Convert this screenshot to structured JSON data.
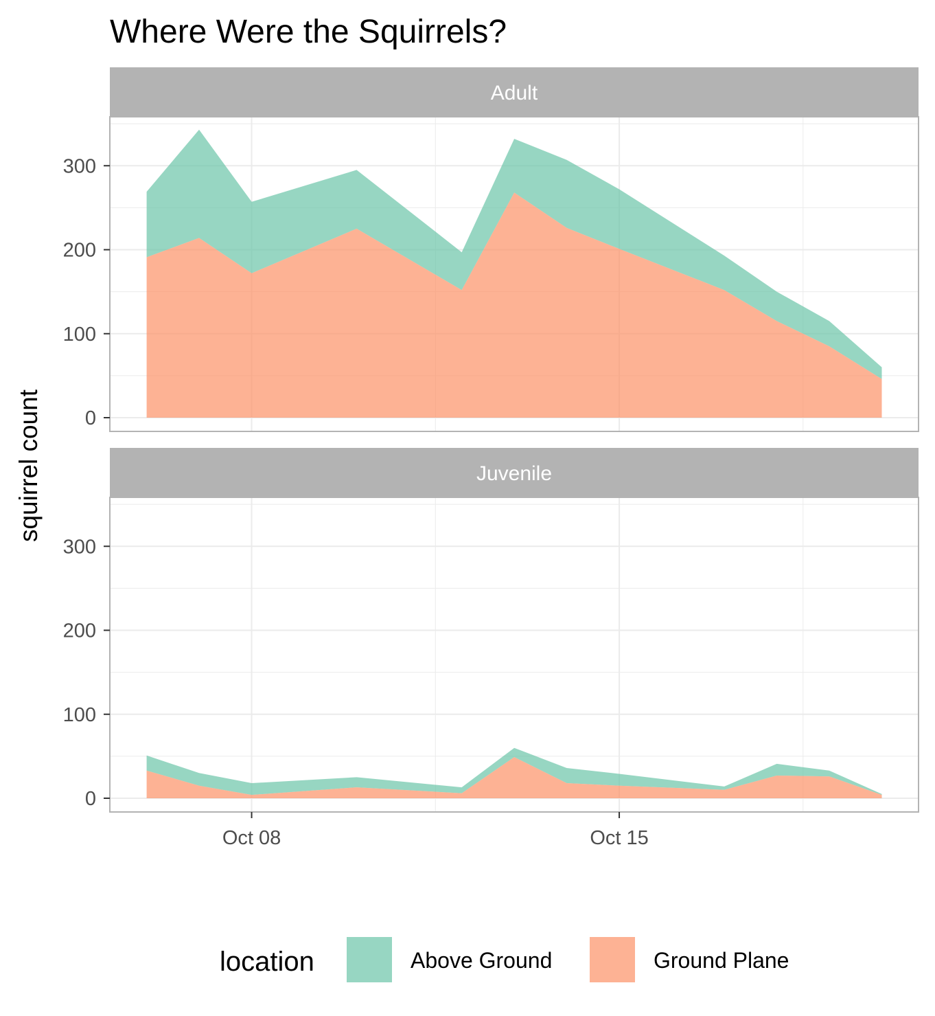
{
  "chart_data": {
    "type": "area",
    "stacked": true,
    "title": "Where Were the Squirrels?",
    "ylabel": "squirrel count",
    "xlabel": "",
    "x_ticks": [
      "Oct 08",
      "Oct 15"
    ],
    "y_ticks": [
      0,
      100,
      200,
      300
    ],
    "ylim": [
      0,
      360
    ],
    "grid": true,
    "legend": {
      "title": "location",
      "position": "bottom",
      "items": [
        {
          "label": "Above Ground",
          "color": "#66c2a5"
        },
        {
          "label": "Ground Plane",
          "color": "#fc8d62"
        }
      ]
    },
    "x": [
      "2018-10-06",
      "2018-10-07",
      "2018-10-08",
      "2018-10-10",
      "2018-10-12",
      "2018-10-13",
      "2018-10-14",
      "2018-10-15",
      "2018-10-17",
      "2018-10-18",
      "2018-10-19",
      "2018-10-20"
    ],
    "panels": [
      {
        "strip": "Adult",
        "series": [
          {
            "name": "Ground Plane",
            "values": [
              191,
              214,
              172,
              225,
              152,
              268,
              226,
              201,
              152,
              115,
              85,
              46
            ]
          },
          {
            "name": "Above Ground",
            "values": [
              78,
              129,
              85,
              70,
              45,
              64,
              81,
              71,
              41,
              35,
              30,
              14
            ]
          }
        ]
      },
      {
        "strip": "Juvenile",
        "series": [
          {
            "name": "Ground Plane",
            "values": [
              33,
              15,
              4,
              13,
              6,
              49,
              18,
              15,
              10,
              27,
              26,
              4
            ]
          },
          {
            "name": "Above Ground",
            "values": [
              18,
              15,
              14,
              12,
              7,
              11,
              18,
              14,
              4,
              14,
              7,
              1
            ]
          }
        ]
      }
    ]
  }
}
